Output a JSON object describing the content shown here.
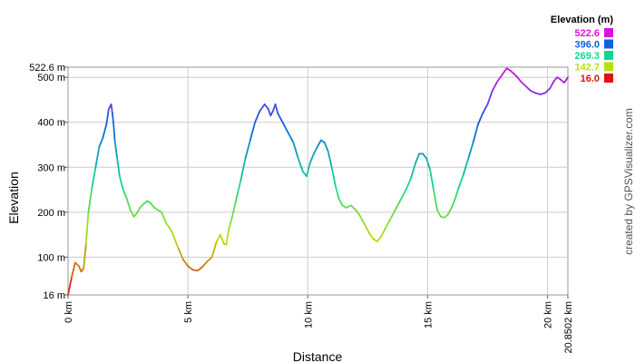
{
  "chart_data": {
    "type": "line",
    "title": "",
    "xlabel": "Distance",
    "ylabel": "Elevation",
    "credit": "created by GPSVisualizer.com",
    "xlim": [
      0,
      20.8502
    ],
    "ylim": [
      16,
      522.6
    ],
    "grid": true,
    "x_ticks": [
      {
        "value": 0,
        "label": "0 km"
      },
      {
        "value": 5,
        "label": "5 km"
      },
      {
        "value": 10,
        "label": "10 km"
      },
      {
        "value": 15,
        "label": "15 km"
      },
      {
        "value": 20,
        "label": "20 km"
      },
      {
        "value": 20.8502,
        "label": "20.8502 km"
      }
    ],
    "y_ticks": [
      {
        "value": 16,
        "label": "16 m"
      },
      {
        "value": 100,
        "label": "100 m"
      },
      {
        "value": 200,
        "label": "200 m"
      },
      {
        "value": 300,
        "label": "300 m"
      },
      {
        "value": 400,
        "label": "400 m"
      },
      {
        "value": 500,
        "label": "500 m"
      },
      {
        "value": 522.6,
        "label": "522.6 m"
      }
    ],
    "legend": {
      "title": "Elevation (m)",
      "placement": "top-right",
      "entries": [
        {
          "label": "522.6",
          "color": "#e010e0"
        },
        {
          "label": "396.0",
          "color": "#1060e0"
        },
        {
          "label": "269.3",
          "color": "#10d890"
        },
        {
          "label": "142.7",
          "color": "#b8e010"
        },
        {
          "label": "16.0",
          "color": "#e01010"
        }
      ]
    },
    "series": [
      {
        "x": [
          0,
          0.15,
          0.3,
          0.45,
          0.55,
          0.65,
          0.75,
          0.85,
          1.0,
          1.15,
          1.3,
          1.45,
          1.6,
          1.7,
          1.8,
          1.85,
          1.9,
          1.95,
          2.05,
          2.15,
          2.3,
          2.45,
          2.6,
          2.75,
          2.9,
          3.0,
          3.15,
          3.3,
          3.45,
          3.6,
          3.75,
          3.9,
          4.1,
          4.3,
          4.45,
          4.6,
          4.8,
          5.0,
          5.2,
          5.4,
          5.6,
          5.8,
          6.0,
          6.2,
          6.35,
          6.5,
          6.6,
          6.7,
          6.85,
          7.0,
          7.2,
          7.4,
          7.6,
          7.8,
          8.0,
          8.2,
          8.35,
          8.45,
          8.55,
          8.65,
          8.75,
          8.85,
          9.0,
          9.2,
          9.4,
          9.6,
          9.8,
          9.95,
          10.1,
          10.25,
          10.4,
          10.55,
          10.7,
          10.85,
          11.0,
          11.15,
          11.3,
          11.45,
          11.6,
          11.8,
          12.0,
          12.2,
          12.4,
          12.6,
          12.75,
          12.9,
          13.05,
          13.2,
          13.35,
          13.5,
          13.7,
          13.9,
          14.1,
          14.3,
          14.5,
          14.65,
          14.8,
          14.95,
          15.1,
          15.25,
          15.4,
          15.55,
          15.7,
          15.85,
          16.0,
          16.15,
          16.3,
          16.5,
          16.7,
          16.9,
          17.1,
          17.3,
          17.5,
          17.7,
          17.9,
          18.1,
          18.3,
          18.45,
          18.6,
          18.75,
          18.9,
          19.1,
          19.3,
          19.5,
          19.7,
          19.9,
          20.1,
          20.25,
          20.4,
          20.55,
          20.7,
          20.85
        ],
        "y": [
          16,
          55,
          88,
          80,
          68,
          75,
          130,
          200,
          255,
          300,
          345,
          365,
          395,
          430,
          440,
          420,
          395,
          360,
          320,
          280,
          250,
          230,
          205,
          190,
          200,
          210,
          218,
          225,
          220,
          210,
          205,
          200,
          175,
          160,
          140,
          120,
          95,
          80,
          72,
          70,
          78,
          90,
          100,
          135,
          150,
          130,
          128,
          160,
          190,
          225,
          270,
          320,
          360,
          400,
          425,
          440,
          430,
          415,
          425,
          440,
          420,
          410,
          395,
          375,
          355,
          320,
          290,
          280,
          310,
          330,
          345,
          360,
          355,
          335,
          300,
          260,
          230,
          215,
          210,
          215,
          205,
          190,
          170,
          150,
          140,
          135,
          145,
          160,
          175,
          190,
          210,
          230,
          250,
          275,
          310,
          330,
          330,
          320,
          295,
          250,
          205,
          190,
          188,
          195,
          210,
          230,
          255,
          285,
          320,
          355,
          395,
          420,
          440,
          470,
          490,
          505,
          520,
          515,
          508,
          500,
          490,
          480,
          470,
          465,
          462,
          465,
          475,
          490,
          500,
          495,
          488,
          500
        ]
      }
    ]
  }
}
